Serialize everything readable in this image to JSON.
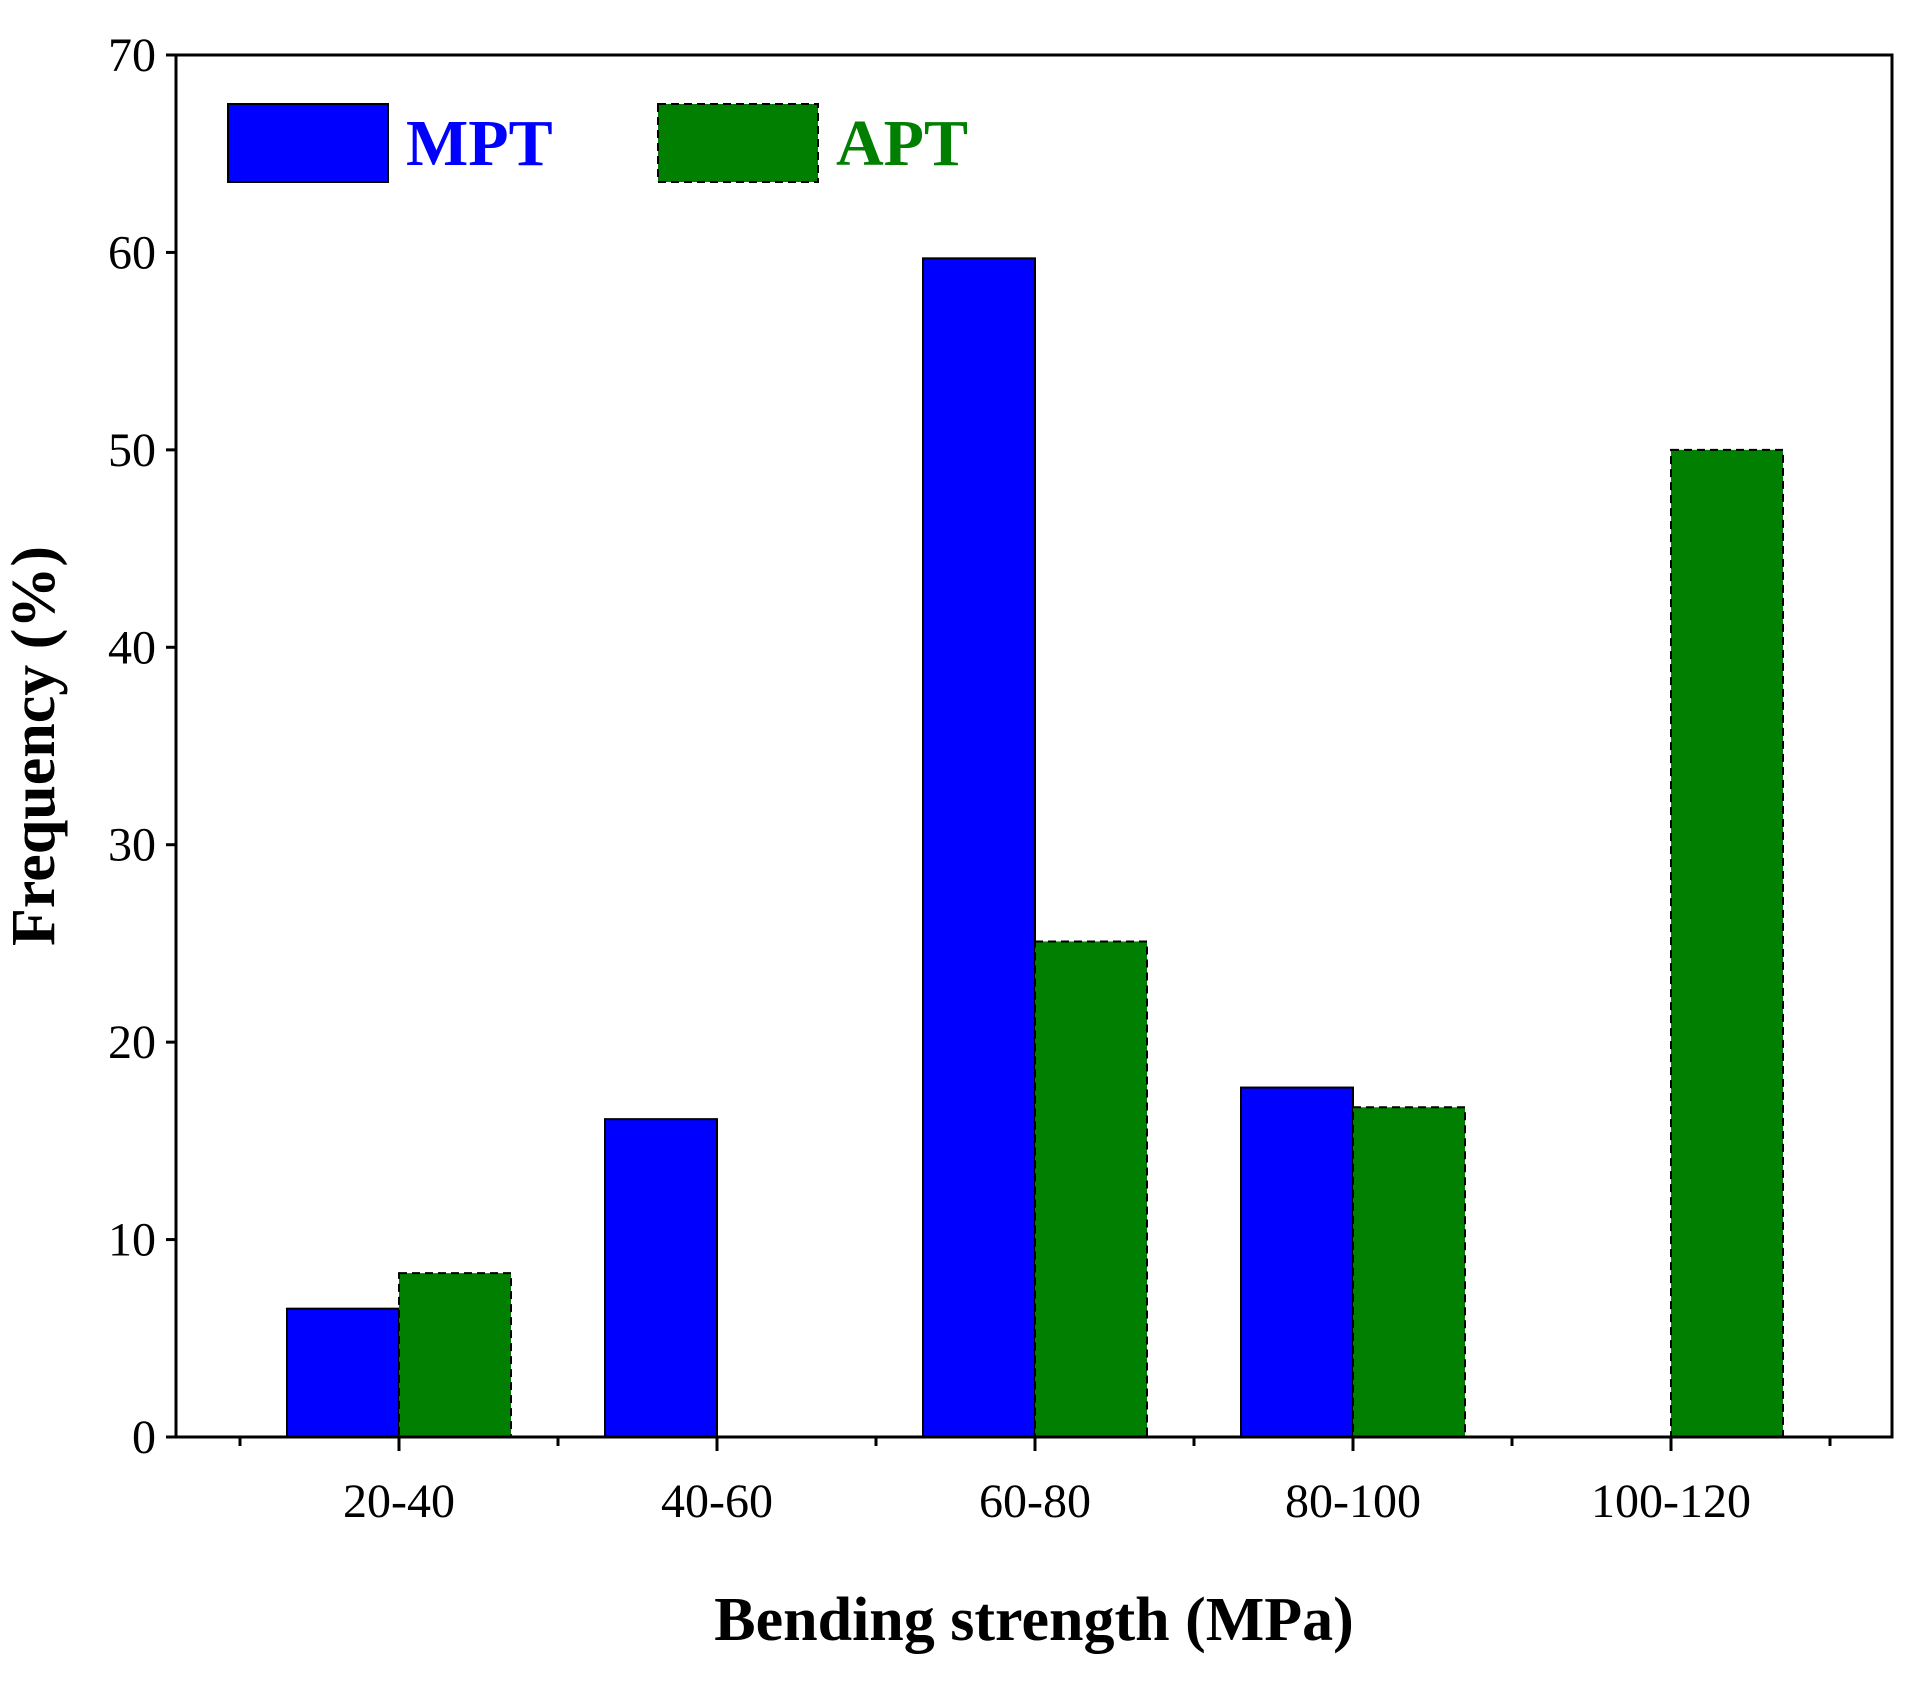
{
  "chart_data": {
    "type": "bar",
    "title": "",
    "xlabel": "Bending strength (MPa)",
    "ylabel": "Frequency (%)",
    "categories": [
      "20-40",
      "40-60",
      "60-80",
      "80-100",
      "100-120"
    ],
    "series": [
      {
        "name": "MPT",
        "color": "#0000ff",
        "values": [
          6.5,
          16.1,
          59.7,
          17.7,
          0
        ]
      },
      {
        "name": "APT",
        "color": "#007f00",
        "values": [
          8.3,
          0,
          25.1,
          16.7,
          50.0
        ]
      }
    ],
    "ylim": [
      0,
      70
    ],
    "yticks": [
      "0",
      "10",
      "20",
      "30",
      "40",
      "50",
      "60",
      "70"
    ],
    "legend_position": "top-left",
    "grid": false
  }
}
